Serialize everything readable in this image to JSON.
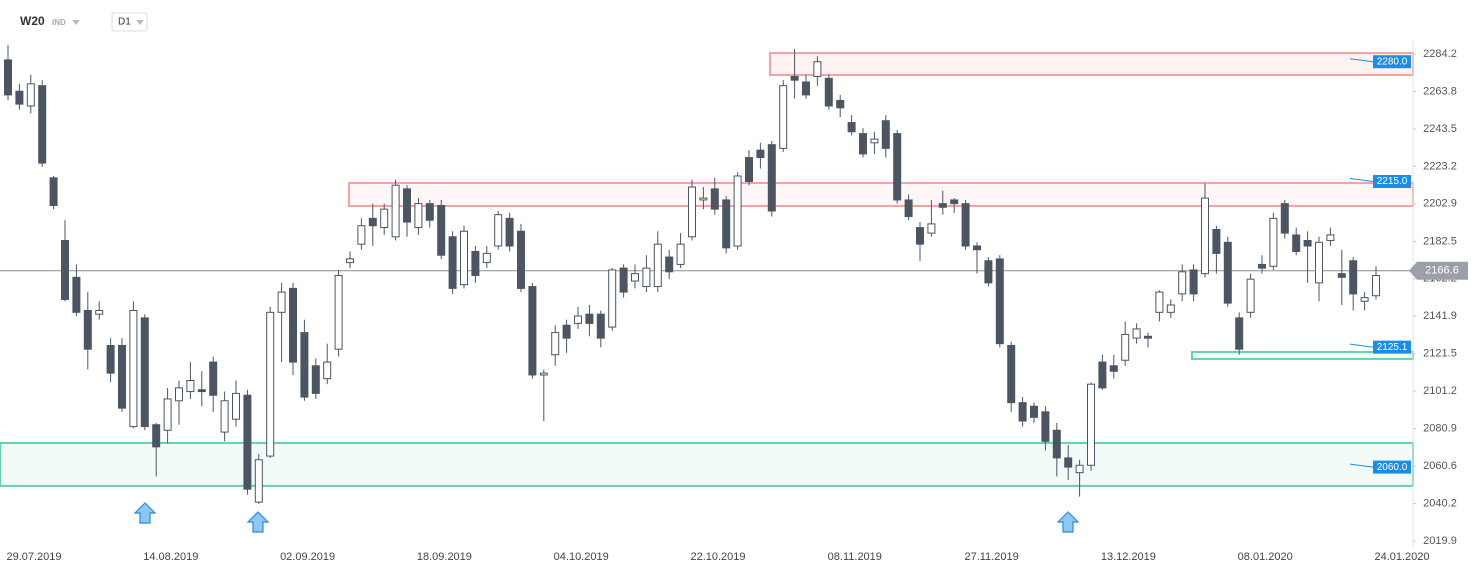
{
  "chart_data": {
    "type": "candlestick",
    "title": "W20",
    "market": "IND",
    "interval": "D1",
    "categories": [
      "29.07.2019",
      null,
      null,
      null,
      null,
      null,
      null,
      null,
      null,
      null,
      null,
      null,
      "14.08.2019",
      null,
      null,
      null,
      null,
      null,
      null,
      null,
      null,
      null,
      null,
      null,
      "02.09.2019",
      null,
      null,
      null,
      null,
      null,
      null,
      null,
      null,
      null,
      null,
      null,
      "18.09.2019",
      null,
      null,
      null,
      null,
      null,
      null,
      null,
      null,
      null,
      null,
      null,
      "04.10.2019",
      null,
      null,
      null,
      null,
      null,
      null,
      null,
      null,
      null,
      null,
      null,
      "22.10.2019",
      null,
      null,
      null,
      null,
      null,
      null,
      null,
      null,
      null,
      null,
      null,
      "08.11.2019",
      null,
      null,
      null,
      null,
      null,
      null,
      null,
      null,
      null,
      null,
      null,
      "27.11.2019",
      null,
      null,
      null,
      null,
      null,
      null,
      null,
      null,
      null,
      null,
      null,
      "13.12.2019",
      null,
      null,
      null,
      null,
      null,
      null,
      null,
      null,
      null,
      null,
      null,
      "08.01.2020",
      null,
      null,
      null,
      null,
      null,
      null,
      null,
      null,
      null,
      null,
      null,
      "24.01.2020"
    ],
    "open": [
      2281,
      2264,
      2256,
      2267,
      2217,
      2183,
      2163,
      2145,
      2143,
      2126,
      2126,
      2082,
      2141,
      2083,
      2080,
      2096,
      2101,
      2102,
      2117,
      2079,
      2086,
      2099,
      2041,
      2066,
      2144,
      2157,
      2133,
      2115,
      2108,
      2124,
      2171,
      2181,
      2195,
      2190,
      2185,
      2211,
      2190,
      2203,
      2202,
      2185,
      2159,
      2177,
      2171,
      2180,
      2195,
      2188,
      2158,
      2110,
      2121,
      2137,
      2138,
      2143,
      2143,
      2136,
      2168,
      2161,
      2158,
      2158,
      2174,
      2170,
      2185,
      2205,
      2211,
      2205,
      2180,
      2228,
      2232,
      2235,
      2233,
      2272,
      2269,
      2272,
      2271,
      2259,
      2247,
      2241,
      2236,
      2248,
      2241,
      2205,
      2190,
      2187,
      2203,
      2205,
      2203,
      2180,
      2172,
      2173,
      2126,
      2095,
      2093,
      2090,
      2080,
      2065,
      2057,
      2061,
      2117,
      2115,
      2118,
      2130,
      2131,
      2144,
      2144,
      2154,
      2167,
      2165,
      2189,
      2182,
      2141,
      2144,
      2170,
      2169,
      2203,
      2186,
      2183,
      2160,
      2183,
      2165,
      2172,
      2150,
      2153
    ],
    "high": [
      2289,
      2268,
      2273,
      2270,
      2218,
      2194,
      2170,
      2155,
      2150,
      2130,
      2130,
      2150,
      2143,
      2084,
      2103,
      2107,
      2117,
      2112,
      2120,
      2101,
      2107,
      2102,
      2067,
      2147,
      2160,
      2160,
      2140,
      2119,
      2127,
      2167,
      2177,
      2195,
      2203,
      2203,
      2216,
      2213,
      2206,
      2205,
      2205,
      2188,
      2191,
      2180,
      2180,
      2199,
      2198,
      2192,
      2160,
      2113,
      2137,
      2140,
      2147,
      2148,
      2145,
      2168,
      2170,
      2170,
      2175,
      2188,
      2178,
      2187,
      2216,
      2212,
      2217,
      2207,
      2220,
      2232,
      2236,
      2237,
      2270,
      2287,
      2273,
      2283,
      2273,
      2262,
      2251,
      2244,
      2242,
      2251,
      2243,
      2208,
      2193,
      2205,
      2210,
      2206,
      2205,
      2182,
      2174,
      2175,
      2128,
      2098,
      2095,
      2093,
      2084,
      2072,
      2064,
      2106,
      2121,
      2121,
      2139,
      2138,
      2133,
      2156,
      2151,
      2170,
      2170,
      2214,
      2191,
      2185,
      2144,
      2165,
      2175,
      2198,
      2205,
      2190,
      2188,
      2185,
      2190,
      2178,
      2174,
      2155,
      2169
    ],
    "low": [
      2259,
      2254,
      2252,
      2223,
      2200,
      2150,
      2142,
      2113,
      2140,
      2106,
      2090,
      2081,
      2080,
      2055,
      2073,
      2083,
      2097,
      2093,
      2090,
      2074,
      2082,
      2045,
      2040,
      2065,
      2117,
      2110,
      2096,
      2097,
      2105,
      2120,
      2168,
      2178,
      2180,
      2186,
      2183,
      2185,
      2186,
      2190,
      2173,
      2154,
      2157,
      2160,
      2168,
      2178,
      2177,
      2155,
      2108,
      2085,
      2115,
      2122,
      2135,
      2131,
      2125,
      2134,
      2152,
      2157,
      2155,
      2155,
      2162,
      2168,
      2183,
      2200,
      2197,
      2176,
      2178,
      2213,
      2222,
      2196,
      2231,
      2260,
      2260,
      2267,
      2254,
      2250,
      2240,
      2228,
      2230,
      2228,
      2203,
      2194,
      2172,
      2185,
      2197,
      2198,
      2178,
      2165,
      2158,
      2125,
      2090,
      2082,
      2084,
      2069,
      2055,
      2053,
      2044,
      2058,
      2102,
      2108,
      2115,
      2127,
      2125,
      2139,
      2141,
      2150,
      2150,
      2163,
      2165,
      2147,
      2121,
      2141,
      2165,
      2167,
      2184,
      2175,
      2160,
      2150,
      2180,
      2148,
      2145,
      2145,
      2151
    ],
    "close": [
      2262,
      2257,
      2268,
      2225,
      2202,
      2151,
      2144,
      2124,
      2145,
      2111,
      2092,
      2145,
      2082,
      2071,
      2097,
      2103,
      2107,
      2101,
      2099,
      2096,
      2100,
      2048,
      2064,
      2144,
      2155,
      2117,
      2098,
      2100,
      2117,
      2164,
      2173,
      2191,
      2191,
      2200,
      2213,
      2193,
      2203,
      2194,
      2175,
      2157,
      2188,
      2164,
      2176,
      2197,
      2180,
      2157,
      2110,
      2111,
      2133,
      2130,
      2142,
      2138,
      2130,
      2167,
      2155,
      2165,
      2168,
      2181,
      2166,
      2181,
      2212,
      2206,
      2200,
      2179,
      2218,
      2215,
      2228,
      2199,
      2267,
      2270,
      2262,
      2280,
      2256,
      2255,
      2242,
      2230,
      2238,
      2233,
      2205,
      2196,
      2181,
      2192,
      2201,
      2203,
      2180,
      2178,
      2160,
      2127,
      2095,
      2085,
      2087,
      2074,
      2065,
      2060,
      2061,
      2105,
      2103,
      2112,
      2132,
      2135,
      2130,
      2155,
      2148,
      2166,
      2154,
      2206,
      2176,
      2149,
      2124,
      2162,
      2168,
      2195,
      2187,
      2177,
      2180,
      2182,
      2186,
      2163,
      2154,
      2152,
      2164
    ],
    "up_color": "#ffffff",
    "down_color": "#4b5662",
    "wick_color": "#4b5662",
    "ylim": [
      2016.1,
      2291.8
    ],
    "yticks": [
      2019.9,
      2040.2,
      2060.6,
      2080.9,
      2101.2,
      2121.5,
      2141.9,
      2162.2,
      2182.5,
      2202.9,
      2223.2,
      2243.5,
      2263.8,
      2284.2
    ],
    "last_price": 2166.6,
    "zones": [
      {
        "from": 2272.8,
        "to": 2284.7,
        "label": {
          "value": 2280,
          "label": "2280.0"
        },
        "color": "#f2a3a3",
        "fill": "#fff2f2"
      },
      {
        "from": 2201.7,
        "to": 2214.2,
        "label": {
          "value": 2215,
          "label": "2215.0"
        },
        "color": "#f2a3a3",
        "fill": "#fff7f7"
      },
      {
        "from": 2118.7,
        "to": 2122.5,
        "label": 2125.1,
        "color": "#62d3ab",
        "fill": "#f2fbf8"
      },
      {
        "from": 2049.8,
        "to": 2073.1,
        "label": {
          "value": 2060,
          "label": "2060.0"
        },
        "color": "#62d3ab",
        "fill": "#f3fbf9"
      }
    ]
  }
}
